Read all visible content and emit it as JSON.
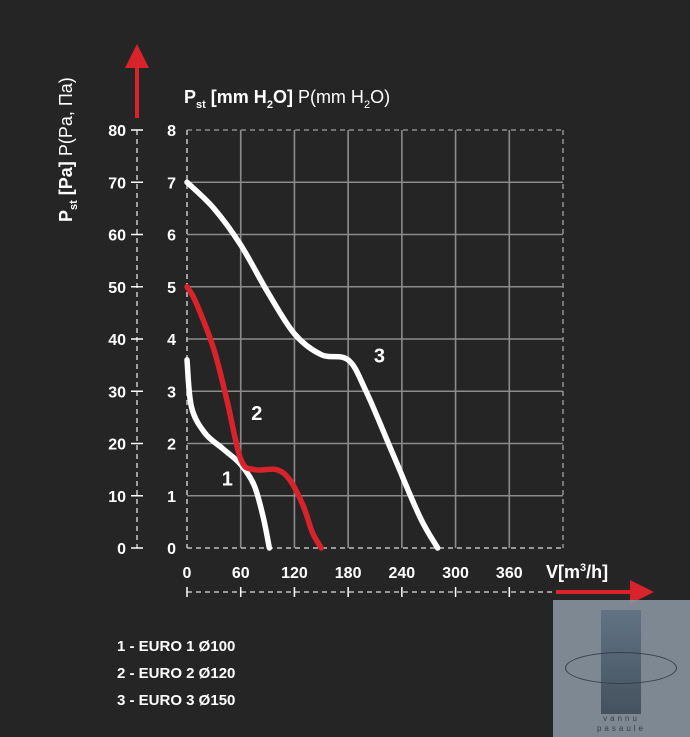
{
  "chart_data": {
    "type": "line",
    "x_axis": {
      "label_main": "V",
      "label_unit": "[m",
      "label_sup": "3",
      "label_end": "/h]",
      "ticks": [
        "0",
        "60",
        "120",
        "180",
        "240",
        "300",
        "360"
      ],
      "range": [
        0,
        420
      ]
    },
    "y_axis_left": {
      "label_main": "P",
      "label_sub": "st",
      "label_unit": " [Pa]",
      "label_alt": " P(Pa, Па)",
      "ticks": [
        "0",
        "10",
        "20",
        "30",
        "40",
        "50",
        "60",
        "70",
        "80"
      ],
      "range": [
        0,
        80
      ]
    },
    "y_axis_right": {
      "label_main": "P",
      "label_sub": "st",
      "label_unit_a": " [mm H",
      "label_unit_sub": "2",
      "label_unit_b": "O]",
      "label_alt_a": " P(mm H",
      "label_alt_sub": "2",
      "label_alt_b": "O)",
      "ticks": [
        "0",
        "1",
        "2",
        "3",
        "4",
        "5",
        "6",
        "7",
        "8"
      ],
      "range": [
        0,
        8
      ]
    },
    "grid": true,
    "series": [
      {
        "name": "1",
        "color": "#ffffff",
        "x": [
          0,
          5,
          20,
          40,
          60,
          75,
          85,
          92
        ],
        "y": [
          3.6,
          2.7,
          2.2,
          1.9,
          1.6,
          1.2,
          0.6,
          0
        ]
      },
      {
        "name": "2",
        "color": "#d9232a",
        "x": [
          0,
          10,
          30,
          45,
          60,
          75,
          100,
          115,
          130,
          140,
          150
        ],
        "y": [
          5.0,
          4.7,
          3.8,
          2.8,
          1.7,
          1.5,
          1.5,
          1.3,
          0.8,
          0.3,
          0
        ]
      },
      {
        "name": "3",
        "color": "#ffffff",
        "x": [
          0,
          30,
          60,
          90,
          120,
          150,
          180,
          200,
          230,
          260,
          280
        ],
        "y": [
          7.0,
          6.5,
          5.8,
          4.9,
          4.1,
          3.7,
          3.6,
          3.0,
          1.8,
          0.6,
          0
        ]
      }
    ],
    "series_labels": [
      {
        "text": "1",
        "x": 45,
        "y": 1.2
      },
      {
        "text": "2",
        "x": 78,
        "y": 2.45
      },
      {
        "text": "3",
        "x": 215,
        "y": 3.55
      }
    ],
    "legend": [
      "1 - EURO 1 Ø100",
      "2 - EURO 2 Ø120",
      "3 - EURO 3 Ø150"
    ],
    "arrow_color": "#d9232a"
  },
  "watermark": {
    "line1": "vannu",
    "line2": "pasaule"
  }
}
